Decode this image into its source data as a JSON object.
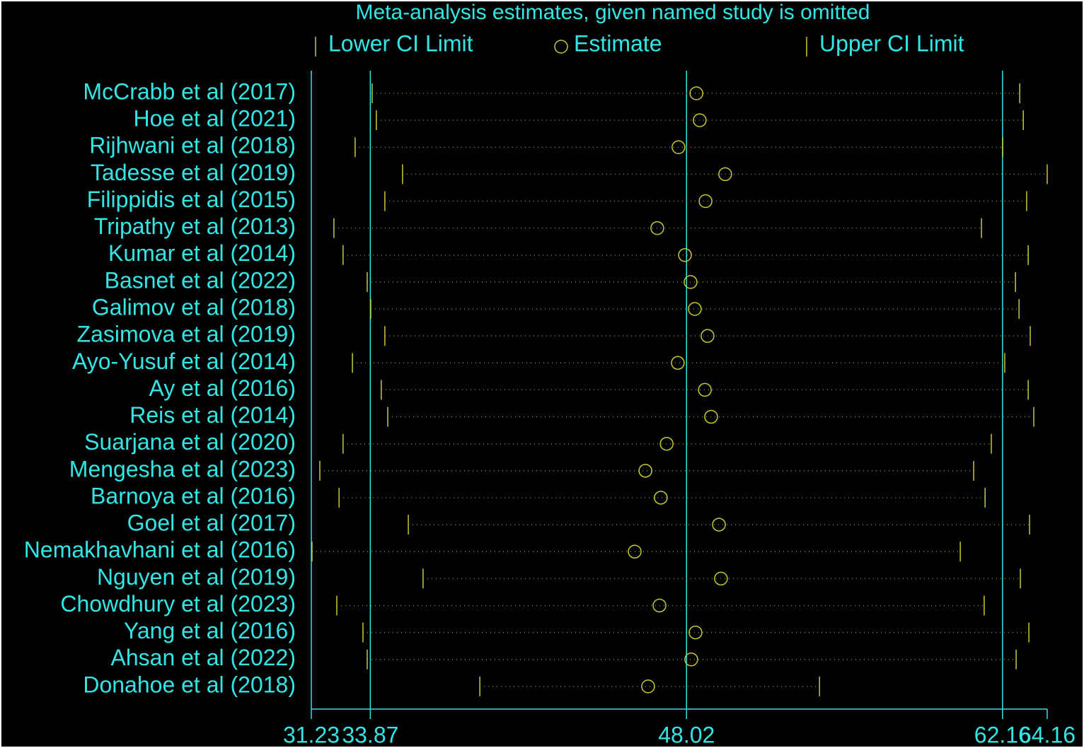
{
  "chart_data": {
    "type": "forest",
    "title": "Meta-analysis estimates, given named study is omitted",
    "categories": [
      "McCrabb et al (2017)",
      "Hoe et al (2021)",
      "Rijhwani et al (2018)",
      "Tadesse et al (2019)",
      "Filippidis et al (2015)",
      "Tripathy et al (2013)",
      "Kumar et al (2014)",
      "Basnet et al (2022)",
      "Galimov et al (2018)",
      "Zasimova et al (2019)",
      "Ayo-Yusuf et al (2014)",
      "Ay et al (2016)",
      "Reis et al (2014)",
      "Suarjana et al (2020)",
      "Mengesha et al (2023)",
      "Barnoya et al (2016)",
      "Goel et al (2017)",
      "Nemakhavhani et al (2016)",
      "Nguyen et al  (2019)",
      "Chowdhury et al (2023)",
      "Yang et al (2016)",
      "Ahsan et al (2022)",
      "Donahoe et al (2018)"
    ],
    "series": [
      {
        "name": "Lower CI Limit",
        "color": "#c8c832",
        "values": [
          33.95,
          34.14,
          33.19,
          35.31,
          34.52,
          32.24,
          32.65,
          33.73,
          33.89,
          34.52,
          33.07,
          34.36,
          34.65,
          32.65,
          31.61,
          32.47,
          35.57,
          31.26,
          36.23,
          32.37,
          33.54,
          33.73,
          38.77
        ]
      },
      {
        "name": "Estimate",
        "color": "#c8c832",
        "values": [
          48.46,
          48.61,
          47.66,
          49.75,
          48.87,
          46.71,
          47.95,
          48.2,
          48.39,
          48.96,
          47.63,
          48.84,
          49.12,
          47.13,
          46.18,
          46.87,
          49.47,
          45.7,
          49.56,
          46.81,
          48.42,
          48.23,
          46.3
        ]
      },
      {
        "name": "Upper CI Limit",
        "color": "#c8c832",
        "values": [
          62.93,
          63.09,
          62.17,
          64.16,
          63.24,
          61.22,
          63.31,
          62.74,
          62.9,
          63.4,
          62.26,
          63.31,
          63.56,
          61.66,
          60.87,
          61.38,
          63.37,
          60.27,
          62.96,
          61.34,
          63.34,
          62.77,
          53.97
        ]
      }
    ],
    "xlim": [
      31.23,
      64.16
    ],
    "xticks": [
      31.23,
      33.87,
      48.02,
      62.16,
      64.16
    ],
    "reference_lines": [
      33.87,
      48.02,
      62.16
    ],
    "text_color": "#33e6e6"
  }
}
